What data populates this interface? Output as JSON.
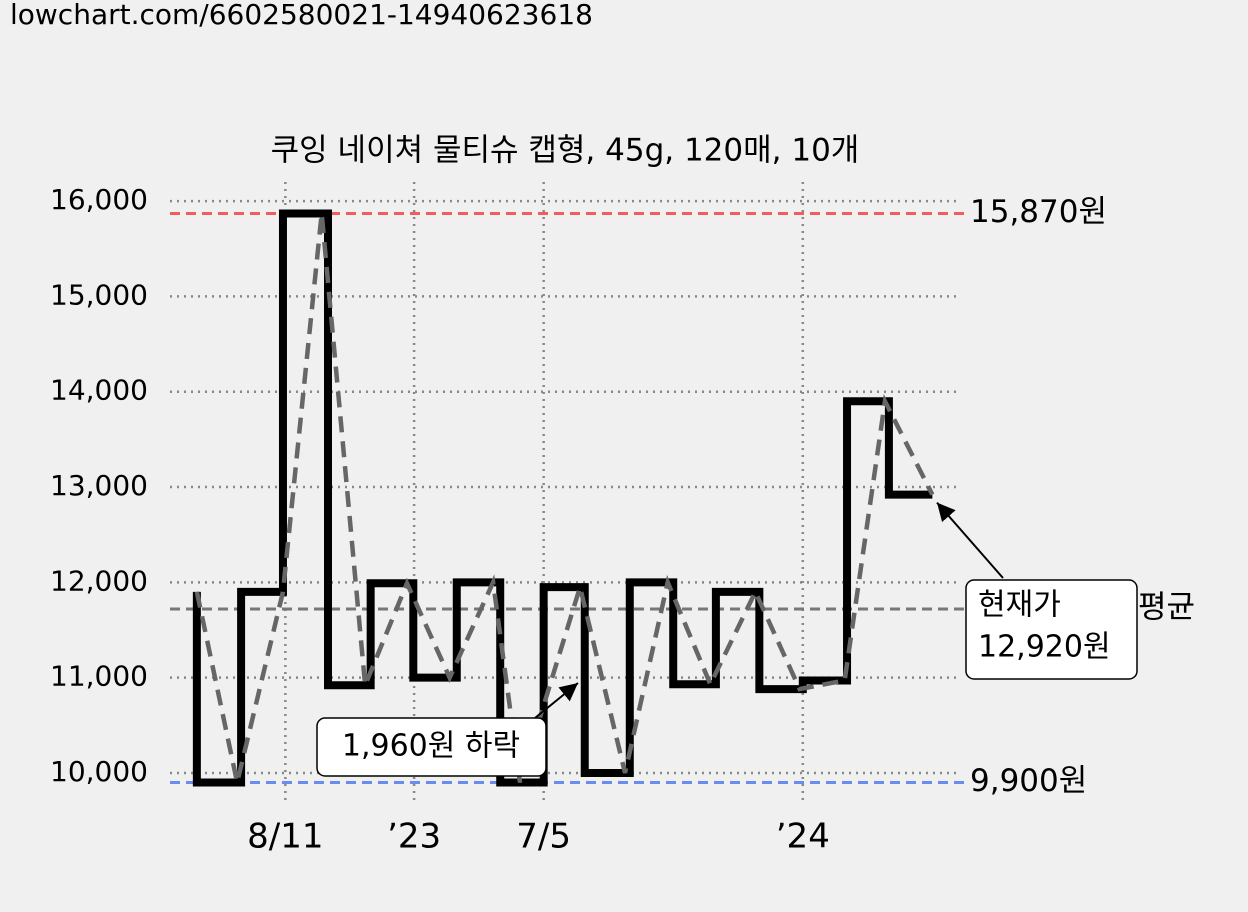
{
  "url": "lowchart.com/6602580021-14940623618",
  "chart_data": {
    "type": "step",
    "title": "쿠잉 네이쳐 물티슈 캡형, 45g, 120매, 10개",
    "xlim": [
      0,
      100
    ],
    "ylim": [
      9800,
      16200
    ],
    "xticks": [
      {
        "value": 14.6,
        "label": "8/11",
        "color": "#666666"
      },
      {
        "value": 30.9,
        "label": "’23",
        "color": "#000000"
      },
      {
        "value": 47.3,
        "label": "7/5",
        "color": "#666666"
      },
      {
        "value": 80.1,
        "label": "’24",
        "color": "#000000"
      }
    ],
    "yticks": [
      {
        "value": 10000,
        "label": "10,000"
      },
      {
        "value": 11000,
        "label": "11,000"
      },
      {
        "value": 12000,
        "label": "12,000"
      },
      {
        "value": 13000,
        "label": "13,000"
      },
      {
        "value": 14000,
        "label": "14,000"
      },
      {
        "value": 15000,
        "label": "15,000"
      },
      {
        "value": 16000,
        "label": "16,000"
      }
    ],
    "grid": true,
    "series": [
      {
        "color": "#000000",
        "style": "step",
        "x": [
          3.4,
          3.4,
          9.0,
          14.3,
          20.0,
          25.4,
          30.8,
          36.3,
          41.8,
          47.3,
          52.5,
          58.2,
          63.7,
          69.1,
          74.6,
          80.1,
          85.7,
          91.0,
          96.5
        ],
        "values": [
          11900,
          9900,
          11900,
          15870,
          10920,
          11990,
          11000,
          12000,
          9900,
          11950,
          10000,
          12000,
          10930,
          11900,
          10880,
          10970,
          13900,
          12920,
          12920
        ]
      },
      {
        "color": "#666666",
        "style": "dashed",
        "x": [
          3.4,
          8.5,
          14.3,
          19.2,
          24.7,
          30.0,
          35.4,
          40.9,
          44.3,
          51.9,
          57.6,
          63.0,
          68.4,
          74.1,
          79.7,
          85.4,
          90.5,
          96.5
        ],
        "values": [
          11900,
          9900,
          11900,
          15870,
          10920,
          11990,
          11000,
          12000,
          9900,
          11950,
          10000,
          12000,
          10930,
          11900,
          10880,
          10970,
          13900,
          12920
        ]
      }
    ],
    "reference_lines": [
      {
        "value": 15870,
        "label": "15,870원",
        "color": "#f25c5c"
      },
      {
        "value": 9900,
        "label": "9,900원",
        "color": "#6b8cef"
      },
      {
        "value": 11720,
        "label": "평균",
        "color": "#777777"
      }
    ],
    "annotations": {
      "current": {
        "text": "현재가",
        "value": 12920,
        "label": "12,920원"
      },
      "drop": {
        "text": "1,960원 하락"
      }
    }
  }
}
